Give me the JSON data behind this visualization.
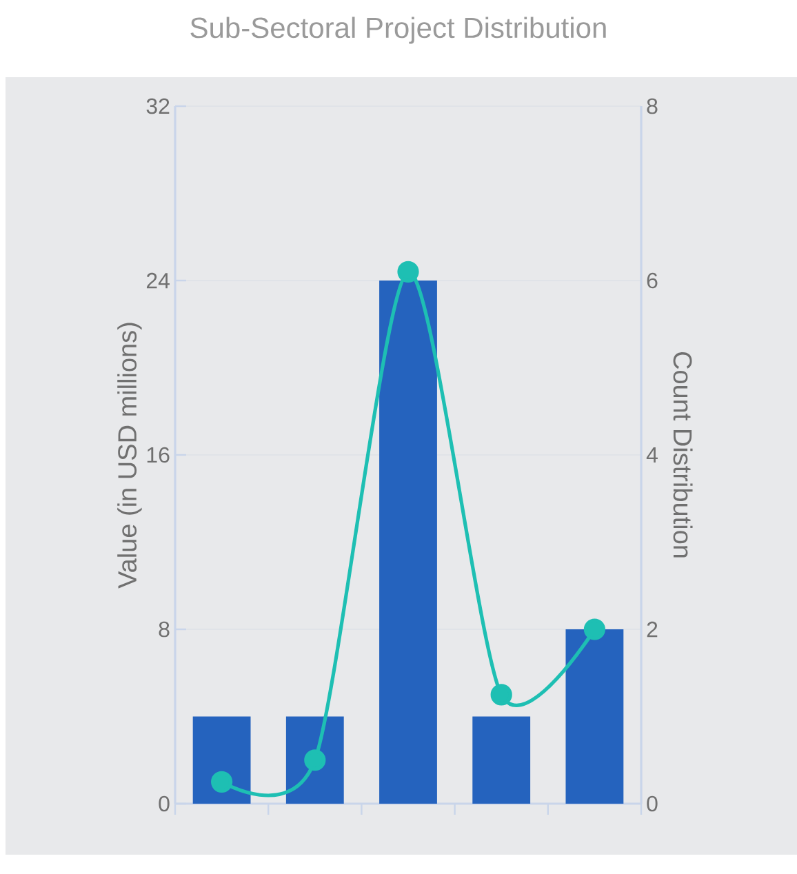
{
  "chart_data": {
    "type": "bar",
    "title": "Sub-Sectoral Project Distribution",
    "ylabel": "Value (in USD millions)",
    "y2label": "Count Distribution",
    "categories": [
      null,
      null,
      null,
      null,
      null
    ],
    "series": [
      {
        "color": "#2563be",
        "values": [
          4,
          4,
          24,
          4,
          8
        ]
      },
      {
        "type": "line",
        "axis": "y2",
        "color": "#1ebfb3",
        "marker": "circle",
        "values": [
          0.25,
          0.5,
          6.1,
          1.25,
          2
        ]
      }
    ],
    "ylim": [
      0,
      32
    ],
    "yticks": [
      0,
      8,
      16,
      24,
      32
    ],
    "y2lim": [
      0,
      8
    ],
    "y2ticks": [
      0,
      2,
      4,
      6,
      8
    ],
    "grid": "y",
    "tick_labels": "y"
  }
}
